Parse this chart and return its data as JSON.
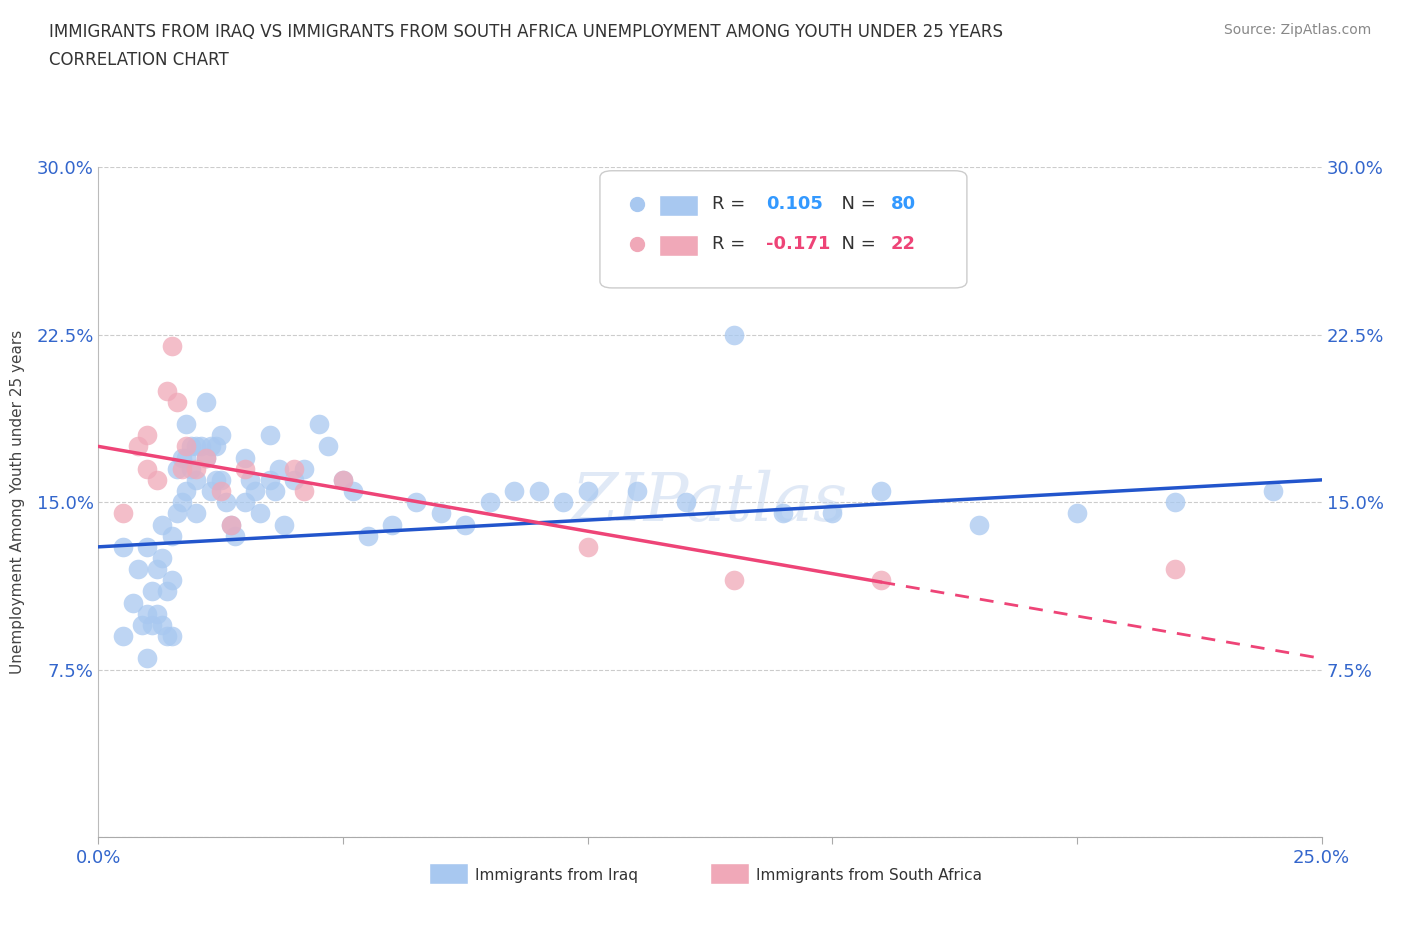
{
  "title_line1": "IMMIGRANTS FROM IRAQ VS IMMIGRANTS FROM SOUTH AFRICA UNEMPLOYMENT AMONG YOUTH UNDER 25 YEARS",
  "title_line2": "CORRELATION CHART",
  "source_text": "Source: ZipAtlas.com",
  "ylabel": "Unemployment Among Youth under 25 years",
  "xlim": [
    0.0,
    0.25
  ],
  "ylim": [
    0.0,
    0.3
  ],
  "xticks": [
    0.0,
    0.05,
    0.1,
    0.15,
    0.2,
    0.25
  ],
  "yticks": [
    0.0,
    0.075,
    0.15,
    0.225,
    0.3
  ],
  "xticklabels": [
    "0.0%",
    "",
    "",
    "",
    "",
    "25.0%"
  ],
  "yticklabels": [
    "",
    "7.5%",
    "15.0%",
    "22.5%",
    "30.0%"
  ],
  "R_iraq": 0.105,
  "N_iraq": 80,
  "R_sa": -0.171,
  "N_sa": 22,
  "iraq_color": "#a8c8f0",
  "sa_color": "#f0a8b8",
  "trend_iraq_color": "#2255cc",
  "trend_sa_color": "#ee4477",
  "legend_label_iraq": "Immigrants from Iraq",
  "legend_label_sa": "Immigrants from South Africa",
  "watermark": "ZIPatlas",
  "iraq_x": [
    0.005,
    0.005,
    0.007,
    0.008,
    0.009,
    0.01,
    0.01,
    0.01,
    0.011,
    0.011,
    0.012,
    0.012,
    0.013,
    0.013,
    0.013,
    0.014,
    0.014,
    0.015,
    0.015,
    0.015,
    0.016,
    0.016,
    0.017,
    0.017,
    0.018,
    0.018,
    0.018,
    0.019,
    0.019,
    0.02,
    0.02,
    0.02,
    0.021,
    0.022,
    0.022,
    0.023,
    0.023,
    0.024,
    0.024,
    0.025,
    0.025,
    0.026,
    0.027,
    0.028,
    0.03,
    0.03,
    0.031,
    0.032,
    0.033,
    0.035,
    0.035,
    0.036,
    0.037,
    0.038,
    0.04,
    0.042,
    0.045,
    0.047,
    0.05,
    0.052,
    0.055,
    0.06,
    0.065,
    0.07,
    0.075,
    0.08,
    0.085,
    0.09,
    0.095,
    0.1,
    0.11,
    0.12,
    0.13,
    0.14,
    0.15,
    0.16,
    0.18,
    0.2,
    0.22,
    0.24
  ],
  "iraq_y": [
    0.13,
    0.09,
    0.105,
    0.12,
    0.095,
    0.13,
    0.1,
    0.08,
    0.11,
    0.095,
    0.12,
    0.1,
    0.14,
    0.125,
    0.095,
    0.11,
    0.09,
    0.135,
    0.115,
    0.09,
    0.165,
    0.145,
    0.17,
    0.15,
    0.185,
    0.17,
    0.155,
    0.175,
    0.165,
    0.175,
    0.16,
    0.145,
    0.175,
    0.195,
    0.17,
    0.175,
    0.155,
    0.175,
    0.16,
    0.18,
    0.16,
    0.15,
    0.14,
    0.135,
    0.17,
    0.15,
    0.16,
    0.155,
    0.145,
    0.18,
    0.16,
    0.155,
    0.165,
    0.14,
    0.16,
    0.165,
    0.185,
    0.175,
    0.16,
    0.155,
    0.135,
    0.14,
    0.15,
    0.145,
    0.14,
    0.15,
    0.155,
    0.155,
    0.15,
    0.155,
    0.155,
    0.15,
    0.225,
    0.145,
    0.145,
    0.155,
    0.14,
    0.145,
    0.15,
    0.155
  ],
  "sa_x": [
    0.005,
    0.008,
    0.01,
    0.01,
    0.012,
    0.014,
    0.015,
    0.016,
    0.017,
    0.018,
    0.02,
    0.022,
    0.025,
    0.027,
    0.03,
    0.04,
    0.042,
    0.05,
    0.1,
    0.13,
    0.16,
    0.22
  ],
  "sa_y": [
    0.145,
    0.175,
    0.18,
    0.165,
    0.16,
    0.2,
    0.22,
    0.195,
    0.165,
    0.175,
    0.165,
    0.17,
    0.155,
    0.14,
    0.165,
    0.165,
    0.155,
    0.16,
    0.13,
    0.115,
    0.115,
    0.12
  ],
  "iraq_trend_y0": 0.13,
  "iraq_trend_y1": 0.16,
  "sa_trend_y0": 0.175,
  "sa_trend_y1": 0.08
}
